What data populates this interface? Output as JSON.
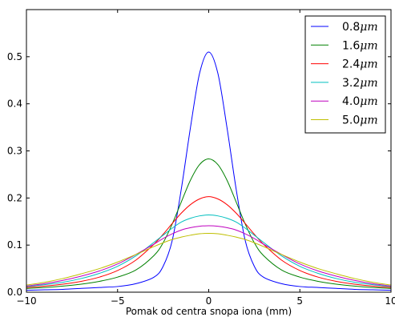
{
  "chart_data": {
    "type": "line",
    "title": "",
    "xlabel": "Pomak od centra snopa iona (mm)",
    "ylabel": "",
    "xlim": [
      -10,
      10
    ],
    "ylim": [
      0,
      0.6
    ],
    "x_ticks": [
      -10,
      -5,
      0,
      5,
      10
    ],
    "x_tick_labels": [
      "−10",
      "−5",
      "0",
      "5",
      "10"
    ],
    "y_ticks": [
      0.0,
      0.1,
      0.2,
      0.3,
      0.4,
      0.5
    ],
    "y_tick_labels": [
      "0.0",
      "0.1",
      "0.2",
      "0.3",
      "0.4",
      "0.5"
    ],
    "grid": false,
    "legend_position": "top-right",
    "x": [
      -10,
      -9,
      -8,
      -7,
      -6,
      -5,
      -4,
      -3,
      -2.5,
      -2,
      -1.5,
      -1,
      -0.5,
      0,
      0.5,
      1,
      1.5,
      2,
      2.5,
      3,
      4,
      5,
      6,
      7,
      8,
      9,
      10
    ],
    "series": [
      {
        "name_value": "0.8",
        "name_unit": "μm",
        "color": "#0000ff",
        "values": [
          0.004,
          0.005,
          0.006,
          0.008,
          0.01,
          0.012,
          0.018,
          0.032,
          0.055,
          0.11,
          0.22,
          0.35,
          0.465,
          0.51,
          0.465,
          0.35,
          0.22,
          0.11,
          0.055,
          0.032,
          0.018,
          0.012,
          0.01,
          0.008,
          0.006,
          0.005,
          0.004
        ]
      },
      {
        "name_value": "1.6",
        "name_unit": "μm",
        "color": "#008000",
        "values": [
          0.008,
          0.01,
          0.013,
          0.017,
          0.023,
          0.032,
          0.047,
          0.078,
          0.105,
          0.145,
          0.192,
          0.238,
          0.271,
          0.283,
          0.271,
          0.238,
          0.192,
          0.145,
          0.105,
          0.078,
          0.047,
          0.032,
          0.023,
          0.017,
          0.013,
          0.01,
          0.008
        ]
      },
      {
        "name_value": "2.4",
        "name_unit": "μm",
        "color": "#ff0000",
        "values": [
          0.01,
          0.013,
          0.017,
          0.023,
          0.032,
          0.046,
          0.068,
          0.102,
          0.123,
          0.146,
          0.168,
          0.186,
          0.198,
          0.203,
          0.198,
          0.186,
          0.168,
          0.146,
          0.123,
          0.102,
          0.068,
          0.046,
          0.032,
          0.023,
          0.017,
          0.013,
          0.01
        ]
      },
      {
        "name_value": "3.2",
        "name_unit": "μm",
        "color": "#00bfbf",
        "values": [
          0.012,
          0.016,
          0.021,
          0.029,
          0.04,
          0.055,
          0.077,
          0.106,
          0.121,
          0.136,
          0.149,
          0.157,
          0.162,
          0.164,
          0.162,
          0.157,
          0.149,
          0.136,
          0.121,
          0.106,
          0.077,
          0.055,
          0.04,
          0.029,
          0.021,
          0.016,
          0.012
        ]
      },
      {
        "name_value": "4.0",
        "name_unit": "μm",
        "color": "#bf00bf",
        "values": [
          0.013,
          0.018,
          0.025,
          0.034,
          0.045,
          0.06,
          0.08,
          0.102,
          0.114,
          0.124,
          0.132,
          0.137,
          0.14,
          0.141,
          0.14,
          0.137,
          0.132,
          0.124,
          0.114,
          0.102,
          0.08,
          0.06,
          0.045,
          0.034,
          0.025,
          0.018,
          0.013
        ]
      },
      {
        "name_value": "5.0",
        "name_unit": "μm",
        "color": "#bfbf00",
        "values": [
          0.015,
          0.021,
          0.029,
          0.039,
          0.05,
          0.064,
          0.08,
          0.097,
          0.105,
          0.112,
          0.117,
          0.121,
          0.124,
          0.125,
          0.124,
          0.121,
          0.117,
          0.112,
          0.105,
          0.097,
          0.08,
          0.064,
          0.05,
          0.039,
          0.029,
          0.021,
          0.015
        ]
      }
    ]
  }
}
